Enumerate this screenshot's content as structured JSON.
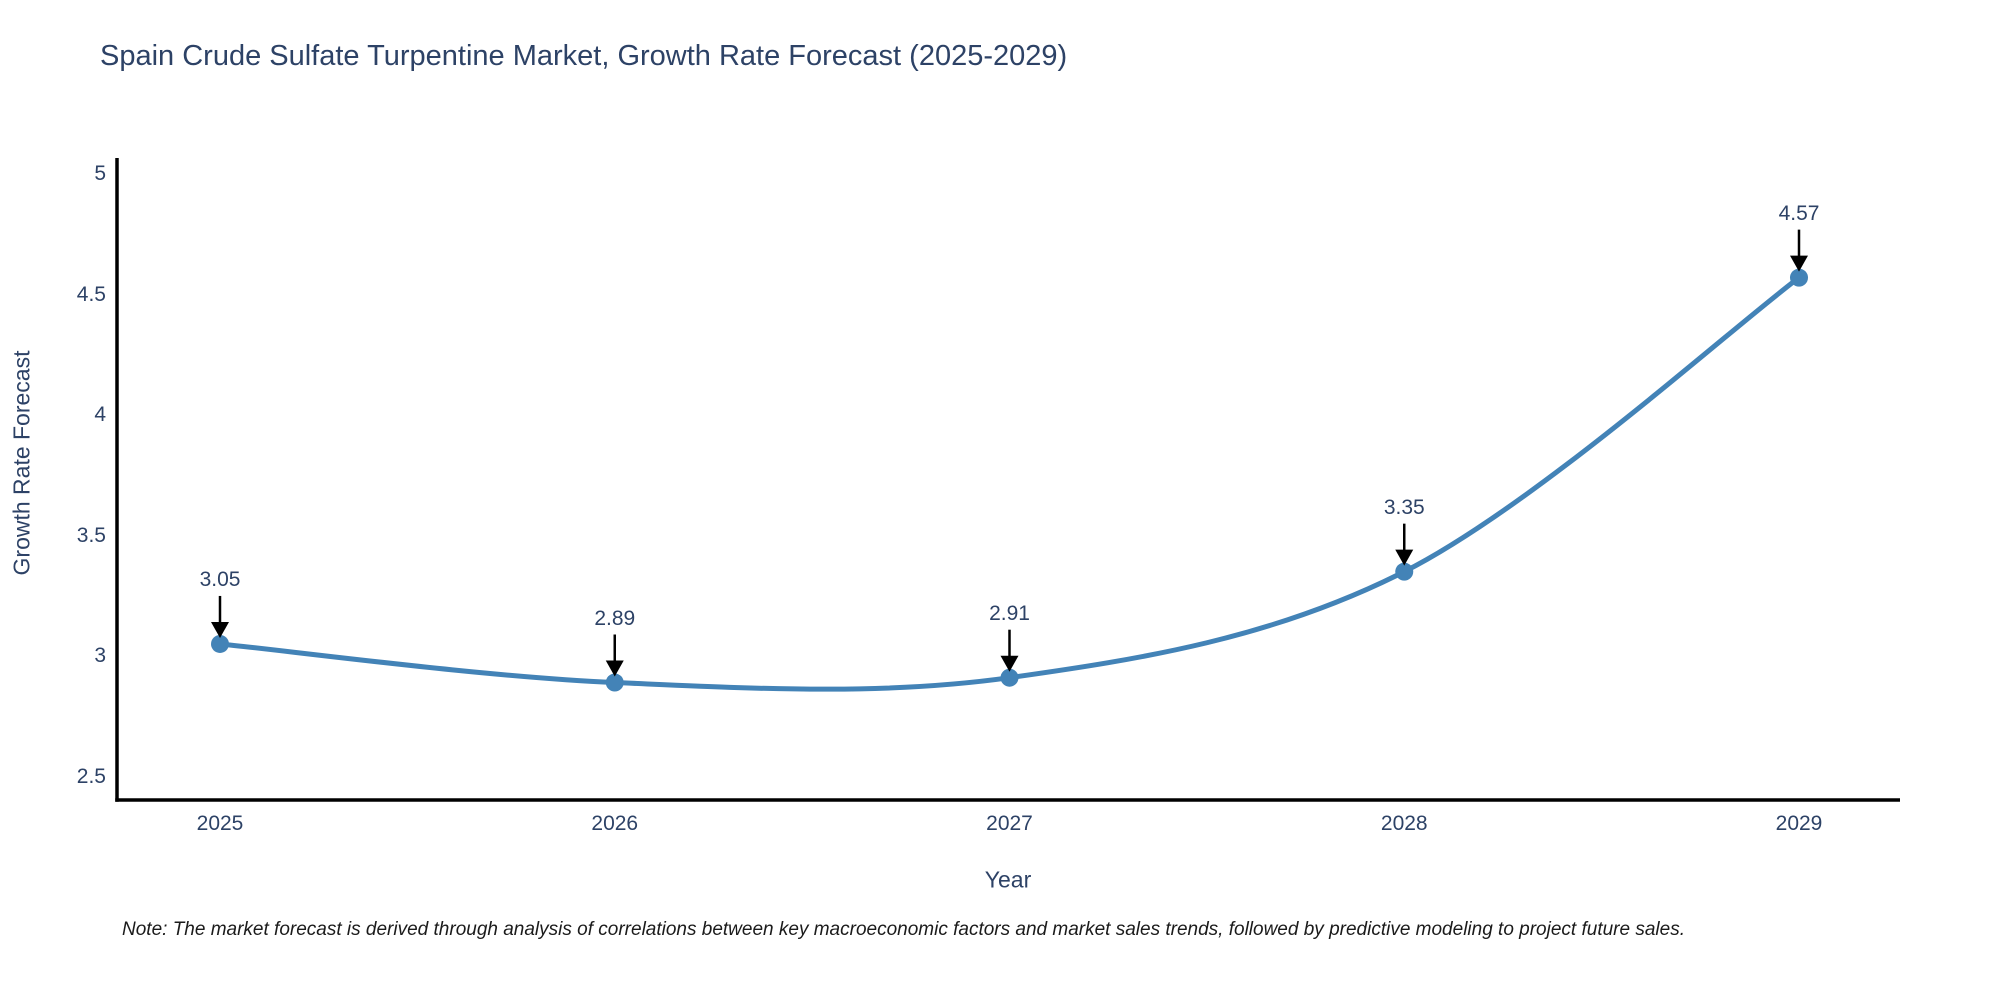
{
  "chart": {
    "title": "Spain Crude Sulfate Turpentine Market, Growth Rate Forecast (2025-2029)",
    "note": "Note: The market forecast is derived through analysis of correlations between key macroeconomic factors and market sales trends, followed by predictive modeling to project future sales."
  },
  "chart_data": {
    "type": "line",
    "title": "Spain Crude Sulfate Turpentine Market, Growth Rate Forecast (2025-2029)",
    "xlabel": "Year",
    "ylabel": "Growth Rate Forecast",
    "categories": [
      "2025",
      "2026",
      "2027",
      "2028",
      "2029"
    ],
    "values": [
      3.05,
      2.89,
      2.91,
      3.35,
      4.57
    ],
    "data_labels": [
      "3.05",
      "2.89",
      "2.91",
      "3.35",
      "4.57"
    ],
    "y_tick_labels": [
      "5",
      "4.5",
      "4",
      "3.5",
      "3",
      "2.5"
    ],
    "y_tick_values": [
      5,
      4.5,
      4,
      3.5,
      3,
      2.5
    ],
    "ylim": [
      2.4,
      5.07
    ],
    "line_shape": "spline",
    "markers": true,
    "grid": false,
    "legend": false,
    "annotations_have_arrows": true,
    "colors": {
      "line": "#4383b7",
      "marker": "#4383b7",
      "axis": "#000000",
      "arrow": "#000000",
      "labels": "#2d4266",
      "note_text": "#1b1b1b",
      "background": "#ffffff"
    }
  }
}
